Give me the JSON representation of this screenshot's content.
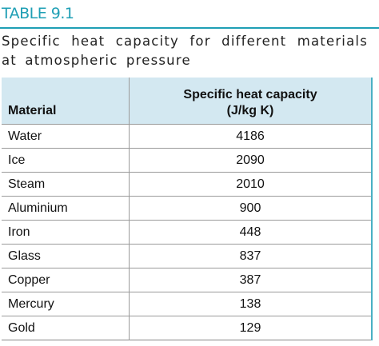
{
  "title": "TABLE 9.1",
  "caption": "Specific heat capacity for different materials at atmospheric pressure",
  "table": {
    "header": [
      "Material",
      [
        "Specific heat capacity",
        "(J/kg K)"
      ]
    ],
    "rows": [
      [
        "Water",
        4186
      ],
      [
        "Ice",
        2090
      ],
      [
        "Steam",
        2010
      ],
      [
        "Aluminium",
        900
      ],
      [
        "Iron",
        448
      ],
      [
        "Glass",
        837
      ],
      [
        "Copper",
        387
      ],
      [
        "Mercury",
        138
      ],
      [
        "Gold",
        129
      ]
    ]
  }
}
